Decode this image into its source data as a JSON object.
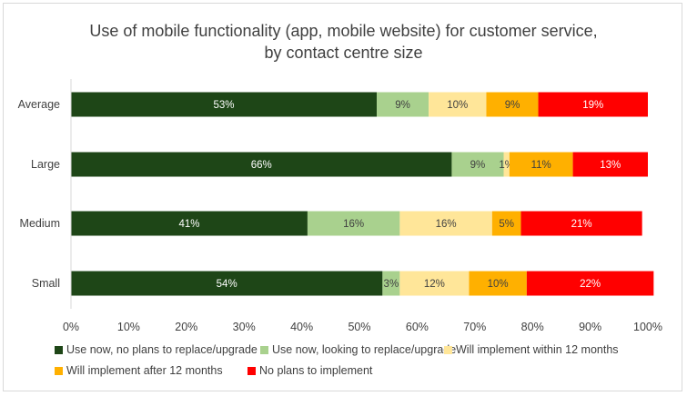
{
  "chart_data": {
    "type": "bar",
    "orientation": "horizontal",
    "stacked": true,
    "percent_stacked": true,
    "title_lines": [
      "Use of mobile functionality (app, mobile website) for customer service,",
      "by contact centre size"
    ],
    "categories": [
      "Average",
      "Large",
      "Medium",
      "Small"
    ],
    "series": [
      {
        "name": "Use now, no plans to replace/upgrade",
        "color": "#1e4617",
        "values": [
          53,
          66,
          41,
          54
        ],
        "labels": [
          "53%",
          "66%",
          "41%",
          "54%"
        ],
        "label_color": "#ffffff"
      },
      {
        "name": "Use now, looking to replace/upgrade",
        "color": "#a9d18e",
        "values": [
          9,
          9,
          16,
          3
        ],
        "labels": [
          "9%",
          "9%",
          "16%",
          "3%"
        ],
        "label_color": "#404040"
      },
      {
        "name": "Will implement within 12 months",
        "color": "#ffe699",
        "values": [
          10,
          1,
          16,
          12
        ],
        "labels": [
          "10%",
          "1%",
          "16%",
          "12%"
        ],
        "label_color": "#404040"
      },
      {
        "name": "Will implement after 12 months",
        "color": "#ffb000",
        "values": [
          9,
          11,
          5,
          10
        ],
        "labels": [
          "9%",
          "11%",
          "5%",
          "10%"
        ],
        "label_color": "#404040"
      },
      {
        "name": "No plans to implement",
        "color": "#ff0000",
        "values": [
          19,
          13,
          21,
          22
        ],
        "labels": [
          "19%",
          "13%",
          "21%",
          "22%"
        ],
        "label_color": "#ffffff"
      }
    ],
    "x_ticks": [
      "0%",
      "10%",
      "20%",
      "30%",
      "40%",
      "50%",
      "60%",
      "70%",
      "80%",
      "90%",
      "100%"
    ],
    "xlim": [
      0,
      100
    ],
    "grid": false,
    "legend_position": "bottom"
  }
}
